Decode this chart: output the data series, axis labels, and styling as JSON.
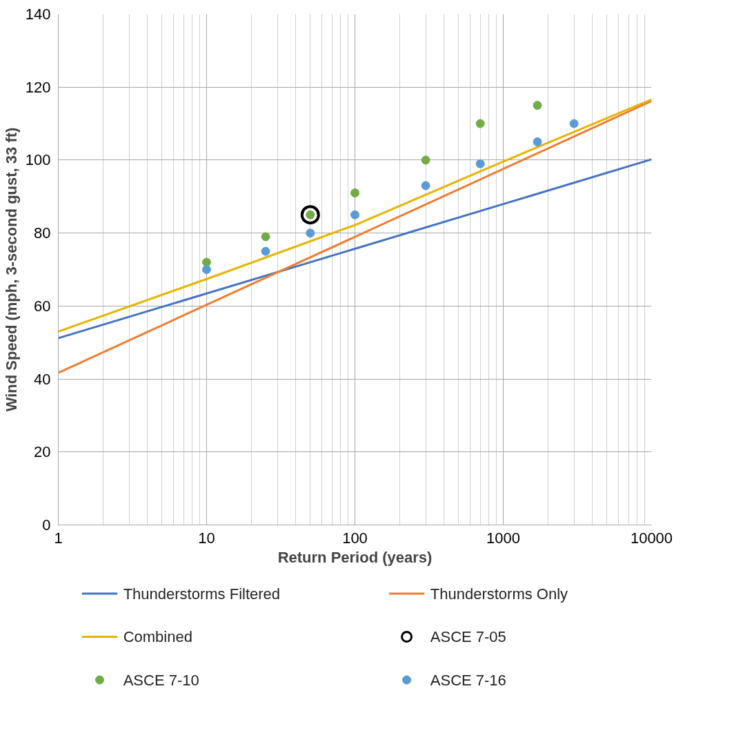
{
  "chart_data": {
    "type": "line",
    "xlabel": "Return Period (years)",
    "ylabel": "Wind Speed (mph, 3-second gust, 33 ft)",
    "log": "x",
    "xlim": [
      1,
      10000
    ],
    "xticks": [
      1,
      10,
      100,
      1000,
      10000
    ],
    "ylim": [
      0,
      140
    ],
    "yticks": [
      0,
      20,
      40,
      60,
      80,
      100,
      120,
      140
    ],
    "grid": true,
    "legend": "bottom",
    "series": [
      {
        "name": "Thunderstorms Filtered",
        "color": "#4472c4",
        "x": [
          1,
          10000
        ],
        "values": [
          51.2,
          100.2
        ]
      },
      {
        "name": "Thunderstorms Only",
        "color": "#ed7d31",
        "x": [
          1,
          10000
        ],
        "values": [
          41.7,
          116.2
        ]
      },
      {
        "name": "Combined",
        "color": "#e6b400",
        "x": [
          1,
          10,
          100,
          1000,
          10000
        ],
        "values": [
          53,
          67.4,
          82.2,
          99.6,
          116.6
        ]
      },
      {
        "name": "ASCE 7-05",
        "type": "scatter",
        "marker": "circle_open",
        "color": "#000000",
        "x": [
          50
        ],
        "values": [
          85
        ]
      },
      {
        "name": "ASCE 7-10",
        "type": "scatter",
        "marker": "circle",
        "color": "#70ad47",
        "x": [
          10,
          25,
          50,
          100,
          300,
          700,
          1700
        ],
        "values": [
          72,
          79,
          85,
          91,
          100,
          110,
          115
        ]
      },
      {
        "name": "ASCE 7-16",
        "type": "scatter",
        "marker": "circle",
        "color": "#5b9bd5",
        "x": [
          10,
          25,
          50,
          100,
          300,
          700,
          1700,
          3000
        ],
        "values": [
          70,
          75,
          80,
          85,
          93,
          99,
          105,
          110
        ]
      }
    ]
  }
}
